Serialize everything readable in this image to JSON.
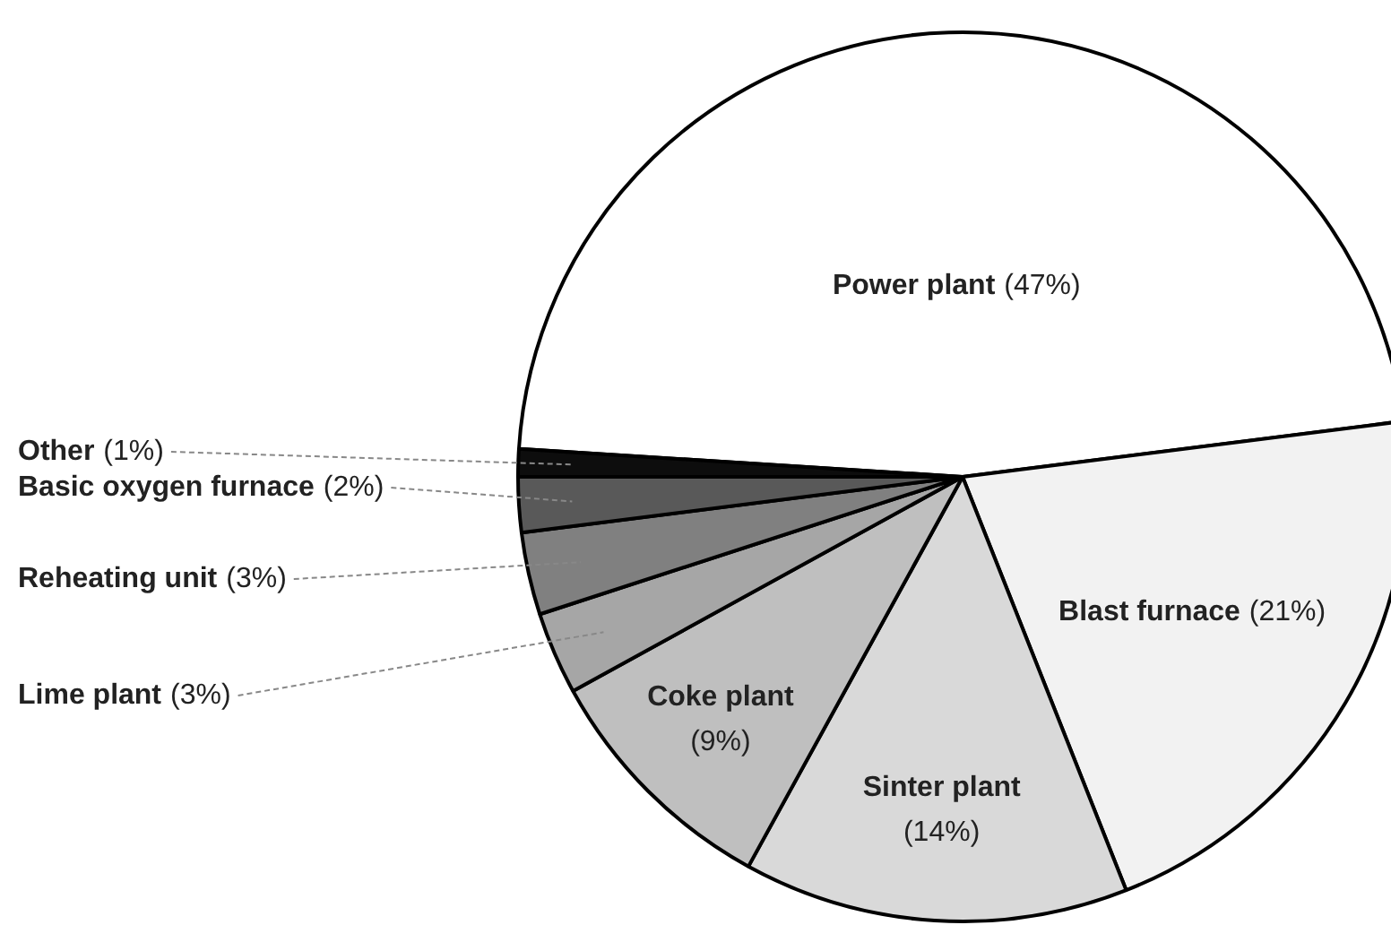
{
  "chart_data": {
    "type": "pie",
    "categories": [
      "Power plant",
      "Blast furnace",
      "Sinter plant",
      "Coke plant",
      "Lime plant",
      "Reheating unit",
      "Basic oxygen furnace",
      "Other"
    ],
    "values": [
      47,
      21,
      14,
      9,
      3,
      3,
      2,
      1
    ],
    "colors": [
      "#ffffff",
      "#f2f2f2",
      "#d9d9d9",
      "#bfbfbf",
      "#a6a6a6",
      "#808080",
      "#595959",
      "#0d0d0d"
    ],
    "value_labels": [
      "(47%)",
      "(21%)",
      "(14%)",
      "(9%)",
      "(3%)",
      "(3%)",
      "(2%)",
      "(1%)"
    ]
  }
}
